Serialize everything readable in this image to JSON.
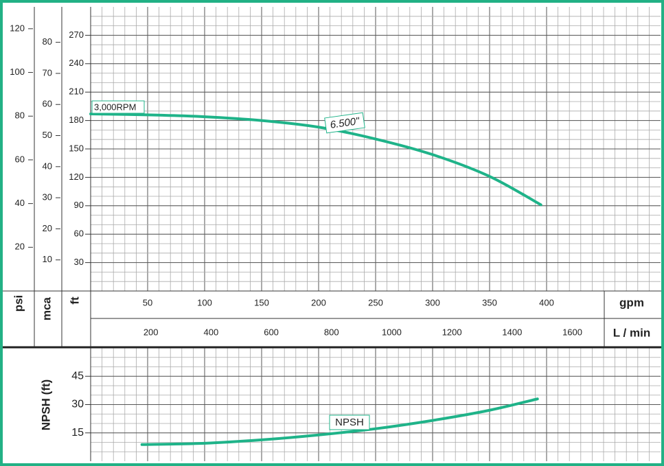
{
  "chart_data": [
    {
      "type": "line",
      "speed_label": "3,000RPM",
      "xlabel": "gpm",
      "xlim": [
        0,
        500
      ],
      "xticks": [
        50,
        100,
        150,
        200,
        250,
        300,
        350,
        400
      ],
      "x2label": "L / min",
      "x2lim": [
        0,
        1893
      ],
      "x2ticks": [
        200,
        400,
        600,
        800,
        1000,
        1200,
        1400,
        1600
      ],
      "ylabel": "ft",
      "ylim": [
        0,
        300
      ],
      "yticks": [
        30,
        60,
        90,
        120,
        150,
        180,
        210,
        240,
        270
      ],
      "y2label": "psi",
      "y2lim": [
        0,
        130
      ],
      "y2ticks": [
        20,
        40,
        60,
        80,
        100,
        120
      ],
      "y3label": "mca",
      "y3lim": [
        0,
        91.4
      ],
      "y3ticks": [
        10,
        20,
        30,
        40,
        50,
        60,
        70,
        80
      ],
      "grid": true,
      "series": [
        {
          "name": "6.500\"",
          "color": "#1fb389",
          "x": [
            0,
            50,
            100,
            150,
            200,
            250,
            300,
            350,
            395
          ],
          "values": [
            187,
            186,
            184,
            180,
            173,
            160.5,
            144,
            121,
            91
          ]
        }
      ]
    },
    {
      "type": "line",
      "ylabel": "NPSH (ft)",
      "ylim": [
        0,
        60
      ],
      "yticks": [
        15,
        30,
        45
      ],
      "xlim": [
        0,
        500
      ],
      "grid": true,
      "series": [
        {
          "name": "NPSH",
          "color": "#1fb389",
          "x": [
            45,
            100,
            150,
            200,
            250,
            300,
            350,
            392
          ],
          "values": [
            8.8,
            9.5,
            11.3,
            13.9,
            17.2,
            21.6,
            27,
            33
          ]
        }
      ]
    }
  ]
}
